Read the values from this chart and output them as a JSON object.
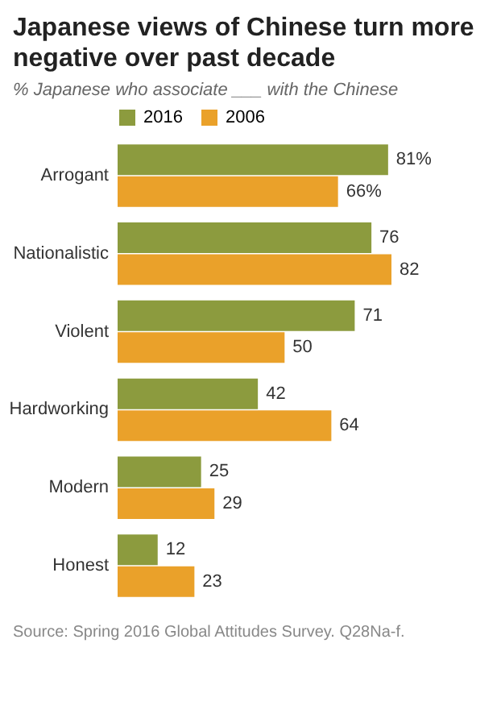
{
  "chart_data": {
    "type": "bar",
    "orientation": "horizontal",
    "title": "Japanese views of Chinese turn more negative over past decade",
    "subtitle": "% Japanese who associate ___ with the Chinese",
    "categories": [
      "Arrogant",
      "Nationalistic",
      "Violent",
      "Hardworking",
      "Modern",
      "Honest"
    ],
    "series": [
      {
        "name": "2016",
        "color": "#8c9b3e",
        "values": [
          81,
          76,
          71,
          42,
          25,
          12
        ],
        "value_labels": [
          "81%",
          "76",
          "71",
          "42",
          "25",
          "12"
        ]
      },
      {
        "name": "2006",
        "color": "#eaa12a",
        "values": [
          66,
          82,
          50,
          64,
          29,
          23
        ],
        "value_labels": [
          "66%",
          "82",
          "50",
          "64",
          "29",
          "23"
        ]
      }
    ],
    "legend": "top",
    "grid": false,
    "annotations": [
      "Source: Spring 2016 Global Attitudes Survey. Q28Na-f."
    ]
  }
}
